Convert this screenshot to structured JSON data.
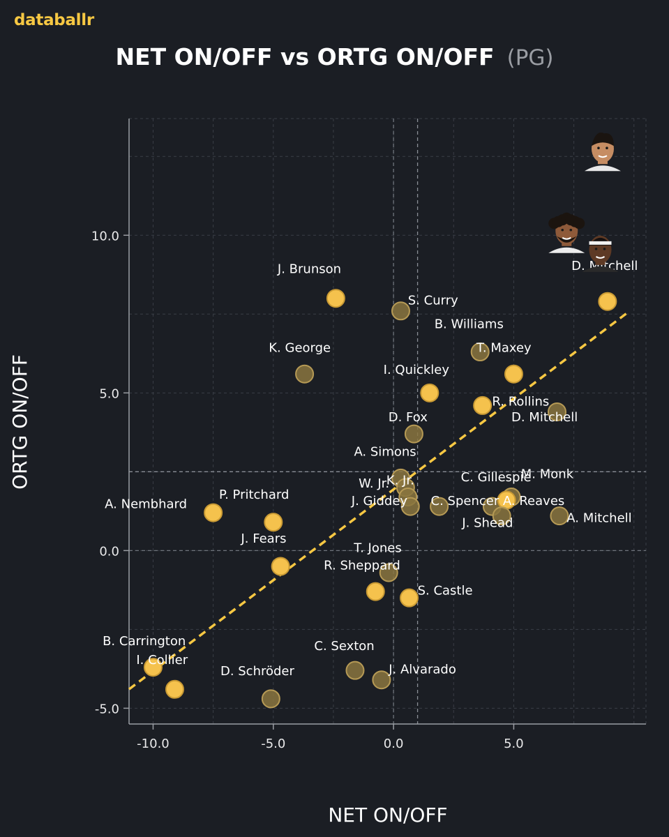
{
  "brand": "databallr",
  "header": {
    "title": "NET ON/OFF vs ORTG ON/OFF",
    "subtitle": "(PG)"
  },
  "colors": {
    "background": "#1b1e24",
    "accent": "#f7c843",
    "point_bright": "#f5c24d",
    "point_dim": "#8a7640",
    "trendline": "#f7c843",
    "grid": "#555a63",
    "axis": "#9a9da3"
  },
  "chart_data": {
    "type": "scatter",
    "title": "NET ON/OFF vs ORTG ON/OFF",
    "subtitle": "(PG)",
    "xlabel": "NET ON/OFF",
    "ylabel": "ORTG ON/OFF",
    "xlim": [
      -11,
      10.5
    ],
    "ylim": [
      -5.5,
      13.7
    ],
    "x_ticks": [
      -10,
      -5,
      0,
      5
    ],
    "x_tick_labels": [
      "-10.0",
      "-5.0",
      "0.0",
      "5.0"
    ],
    "y_ticks": [
      -5,
      0,
      5,
      10
    ],
    "y_tick_labels": [
      "-5.0",
      "0.0",
      "5.0",
      "10.0"
    ],
    "grid": true,
    "reference_lines": {
      "x_mean": 1.0,
      "y_mean": 2.5
    },
    "trendline": {
      "slope": 0.576,
      "intercept": 1.94,
      "x_start": -11,
      "x_end": 9.7
    },
    "points": [
      {
        "name": "J. Brunson",
        "x": -2.4,
        "y": 8.0,
        "bright": true
      },
      {
        "name": "S. Curry",
        "x": 0.3,
        "y": 7.6,
        "bright": false
      },
      {
        "name": "B. Williams",
        "x": 3.6,
        "y": 6.3,
        "bright": false
      },
      {
        "name": "T. Maxey",
        "x": 5.0,
        "y": 5.6,
        "bright": true
      },
      {
        "name": "K. George",
        "x": -3.7,
        "y": 5.6,
        "bright": false
      },
      {
        "name": "I. Quickley",
        "x": 1.5,
        "y": 5.0,
        "bright": true
      },
      {
        "name": "R. Rollins",
        "x": 3.7,
        "y": 4.6,
        "bright": true
      },
      {
        "name": "D. Mitchell",
        "x": 6.8,
        "y": 4.4,
        "bright": false
      },
      {
        "name": "D. Fox",
        "x": 0.85,
        "y": 3.7,
        "bright": false
      },
      {
        "name": "A. Simons",
        "x": 0.3,
        "y": 2.3,
        "bright": false
      },
      {
        "name": "K. Jr.",
        "x": 0.5,
        "y": 2.0,
        "bright": false
      },
      {
        "name": "W. Jr.",
        "x": 0.6,
        "y": 1.7,
        "bright": false
      },
      {
        "name": "J. Giddey",
        "x": 0.7,
        "y": 1.4,
        "bright": false
      },
      {
        "name": "C. Spencer",
        "x": 1.9,
        "y": 1.4,
        "bright": false
      },
      {
        "name": "C. Gillespie",
        "x": 4.1,
        "y": 1.4,
        "bright": false
      },
      {
        "name": "M. Monk",
        "x": 4.9,
        "y": 1.7,
        "bright": false
      },
      {
        "name": "A. Reaves",
        "x": 4.7,
        "y": 1.6,
        "bright": true
      },
      {
        "name": "J. Shead",
        "x": 4.5,
        "y": 1.1,
        "bright": false
      },
      {
        "name": "A. Mitchell",
        "x": 6.9,
        "y": 1.1,
        "bright": false
      },
      {
        "name": "A. Nembhard",
        "x": -7.5,
        "y": 1.2,
        "bright": true
      },
      {
        "name": "P. Pritchard",
        "x": -5.0,
        "y": 0.9,
        "bright": true
      },
      {
        "name": "J. Fears",
        "x": -4.7,
        "y": -0.5,
        "bright": true
      },
      {
        "name": "T. Jones",
        "x": -0.2,
        "y": -0.7,
        "bright": false
      },
      {
        "name": "R. Sheppard",
        "x": -0.75,
        "y": -1.3,
        "bright": true
      },
      {
        "name": "S. Castle",
        "x": 0.65,
        "y": -1.5,
        "bright": true
      },
      {
        "name": "C. Sexton",
        "x": -1.6,
        "y": -3.8,
        "bright": false
      },
      {
        "name": "J. Alvarado",
        "x": -0.5,
        "y": -4.1,
        "bright": false
      },
      {
        "name": "B. Carrington",
        "x": -10.0,
        "y": -3.7,
        "bright": true
      },
      {
        "name": "I. Collier",
        "x": -9.1,
        "y": -4.4,
        "bright": true
      },
      {
        "name": "D. Schröder",
        "x": -5.1,
        "y": -4.7,
        "bright": false
      },
      {
        "name": "D. Mitchell",
        "x": 8.9,
        "y": 7.9,
        "bright": true
      }
    ],
    "point_labels": [
      {
        "text": "J. Brunson",
        "x": -3.5,
        "y": 8.8,
        "anchor": "middle"
      },
      {
        "text": "S. Curry",
        "x": 0.6,
        "y": 7.8,
        "anchor": "start"
      },
      {
        "text": "B. Williams",
        "x": 1.7,
        "y": 7.05,
        "anchor": "start"
      },
      {
        "text": "T. Maxey",
        "x": 3.45,
        "y": 6.3,
        "anchor": "start"
      },
      {
        "text": "K. George",
        "x": -3.9,
        "y": 6.3,
        "anchor": "middle"
      },
      {
        "text": "I. Quickley",
        "x": 0.95,
        "y": 5.6,
        "anchor": "middle"
      },
      {
        "text": "R. Rollins",
        "x": 4.1,
        "y": 4.6,
        "anchor": "start"
      },
      {
        "text": "D. Mitchell",
        "x": 4.9,
        "y": 4.1,
        "anchor": "start"
      },
      {
        "text": "D. Fox",
        "x": 0.6,
        "y": 4.1,
        "anchor": "middle"
      },
      {
        "text": "A. Simons",
        "x": -0.35,
        "y": 3.0,
        "anchor": "middle"
      },
      {
        "text": "W. Jr.",
        "x": -1.45,
        "y": 2.0,
        "anchor": "start"
      },
      {
        "text": "K. Jr.",
        "x": -0.3,
        "y": 2.1,
        "anchor": "start"
      },
      {
        "text": "J. Giddey",
        "x": -1.75,
        "y": 1.45,
        "anchor": "start"
      },
      {
        "text": "C. Spencer",
        "x": 1.55,
        "y": 1.45,
        "anchor": "start"
      },
      {
        "text": "C. Gillespie",
        "x": 2.8,
        "y": 2.2,
        "anchor": "start"
      },
      {
        "text": "M. Monk",
        "x": 5.3,
        "y": 2.3,
        "anchor": "start"
      },
      {
        "text": "A. Reaves",
        "x": 4.55,
        "y": 1.45,
        "anchor": "start"
      },
      {
        "text": "J. Shead",
        "x": 2.85,
        "y": 0.75,
        "anchor": "start"
      },
      {
        "text": "A. Mitchell",
        "x": 7.2,
        "y": 0.9,
        "anchor": "start"
      },
      {
        "text": "A. Nembhard",
        "x": -10.3,
        "y": 1.35,
        "anchor": "middle"
      },
      {
        "text": "P. Pritchard",
        "x": -5.8,
        "y": 1.65,
        "anchor": "middle"
      },
      {
        "text": "J. Fears",
        "x": -5.4,
        "y": 0.25,
        "anchor": "middle"
      },
      {
        "text": "T. Jones",
        "x": -1.65,
        "y": -0.05,
        "anchor": "start"
      },
      {
        "text": "R. Sheppard",
        "x": -2.9,
        "y": -0.6,
        "anchor": "start"
      },
      {
        "text": "S. Castle",
        "x": 1.0,
        "y": -1.4,
        "anchor": "start"
      },
      {
        "text": "C. Sexton",
        "x": -3.3,
        "y": -3.15,
        "anchor": "start"
      },
      {
        "text": "J. Alvarado",
        "x": -0.2,
        "y": -3.9,
        "anchor": "start"
      },
      {
        "text": "B. Carrington",
        "x": -12.1,
        "y": -3.0,
        "anchor": "start"
      },
      {
        "text": "I. Collier",
        "x": -10.7,
        "y": -3.6,
        "anchor": "start"
      },
      {
        "text": "D. Schröder",
        "x": -7.2,
        "y": -3.95,
        "anchor": "start"
      },
      {
        "text": "D. Mitchell",
        "x": 7.4,
        "y": 8.9,
        "anchor": "start"
      }
    ],
    "headshots": [
      {
        "x": 8.7,
        "y": 12.7,
        "skin": "#c68d63",
        "hair": "#1a1410",
        "shirt": "#e8e8e8",
        "hairstyle": "short"
      },
      {
        "x": 7.2,
        "y": 10.1,
        "skin": "#8e5a3a",
        "hair": "#1b140f",
        "shirt": "#ececec",
        "hairstyle": "curly"
      },
      {
        "x": 8.6,
        "y": 9.5,
        "skin": "#5e3a25",
        "hair": "#151010",
        "shirt": "#2a2a2a",
        "hairstyle": "headband"
      }
    ]
  }
}
